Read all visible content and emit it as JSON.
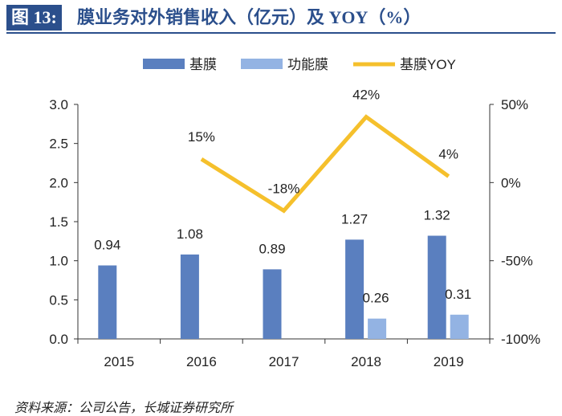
{
  "header": {
    "figure_label": "图 13:",
    "title": "膜业务对外销售收入（亿元）及 YOY（%）"
  },
  "footer": {
    "source": "资料来源：公司公告，长城证券研究所"
  },
  "colors": {
    "base_film": "#5a7fbf",
    "functional_film": "#93b3e3",
    "yoy": "#f5c02c",
    "axis": "#333333",
    "text": "#222222",
    "title": "#2b4f8c"
  },
  "chart_data": {
    "type": "bar",
    "categories": [
      "2015",
      "2016",
      "2017",
      "2018",
      "2019"
    ],
    "series": [
      {
        "name": "基膜",
        "type": "bar",
        "axis": "left",
        "values": [
          0.94,
          1.08,
          0.89,
          1.27,
          1.32
        ],
        "labels": [
          "0.94",
          "1.08",
          "0.89",
          "1.27",
          "1.32"
        ]
      },
      {
        "name": "功能膜",
        "type": "bar",
        "axis": "left",
        "values": [
          null,
          null,
          null,
          0.26,
          0.31
        ],
        "labels": [
          null,
          null,
          null,
          "0.26",
          "0.31"
        ]
      },
      {
        "name": "基膜YOY",
        "type": "line",
        "axis": "right",
        "values": [
          null,
          15,
          -18,
          42,
          4
        ],
        "labels": [
          null,
          "15%",
          "-18%",
          "42%",
          "4%"
        ]
      }
    ],
    "left_axis": {
      "min": 0,
      "max": 3.0,
      "ticks": [
        "0.0",
        "0.5",
        "1.0",
        "1.5",
        "2.0",
        "2.5",
        "3.0"
      ]
    },
    "right_axis": {
      "min": -100,
      "max": 50,
      "ticks": [
        "-100%",
        "-50%",
        "0%",
        "50%"
      ]
    },
    "legend": {
      "position": "top",
      "entries": [
        "基膜",
        "功能膜",
        "基膜YOY"
      ]
    },
    "grid": false
  }
}
